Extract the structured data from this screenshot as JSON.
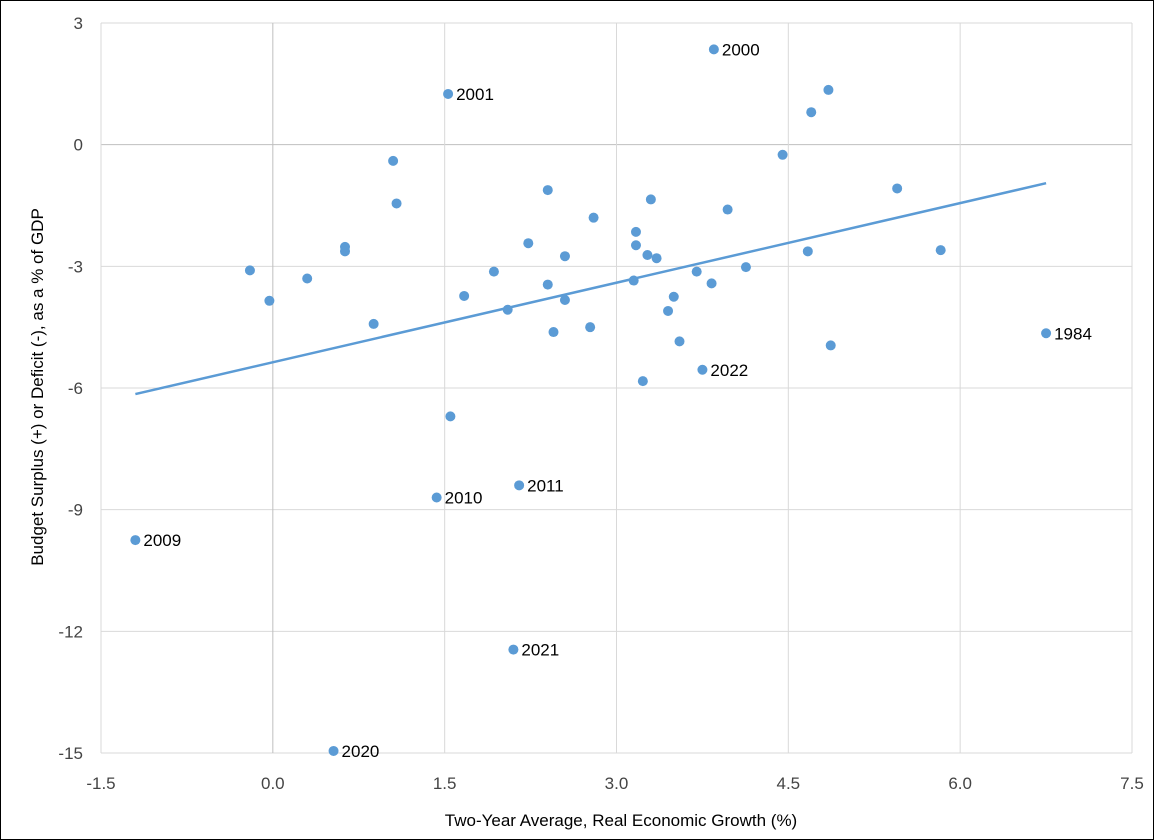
{
  "chart_data": {
    "type": "scatter",
    "title": "",
    "xlabel": "Two-Year Average, Real Economic Growth (%)",
    "ylabel": "Budget Surplus (+) or Deficit (-), as a % of GDP",
    "xlim": [
      -1.5,
      7.5
    ],
    "ylim": [
      -15,
      3
    ],
    "xticks": [
      -1.5,
      0.0,
      1.5,
      3.0,
      4.5,
      6.0,
      7.5
    ],
    "xtick_labels": [
      "-1.5",
      "0.0",
      "1.5",
      "3.0",
      "4.5",
      "6.0",
      "7.5"
    ],
    "yticks": [
      3,
      0,
      -3,
      -6,
      -9,
      -12,
      -15
    ],
    "ytick_labels": [
      "3",
      "0",
      "-3",
      "-6",
      "-9",
      "-12",
      "-15"
    ],
    "grid": true,
    "legend": "none",
    "colors": {
      "points": "#5b9bd5",
      "trendline": "#5b9bd5",
      "grid": "#d9d9d9",
      "axis_zero": "#bfbfbf"
    },
    "trendline": {
      "x": [
        -1.2,
        6.75
      ],
      "y": [
        -6.15,
        -0.95
      ]
    },
    "points": [
      {
        "x": 3.85,
        "y": 2.35,
        "label": "2000"
      },
      {
        "x": 1.53,
        "y": 1.25,
        "label": "2001"
      },
      {
        "x": 6.75,
        "y": -4.65,
        "label": "1984"
      },
      {
        "x": 3.75,
        "y": -5.55,
        "label": "2022"
      },
      {
        "x": 2.15,
        "y": -8.4,
        "label": "2011"
      },
      {
        "x": 1.43,
        "y": -8.7,
        "label": "2010"
      },
      {
        "x": -1.2,
        "y": -9.75,
        "label": "2009"
      },
      {
        "x": 2.1,
        "y": -12.45,
        "label": "2021"
      },
      {
        "x": 0.53,
        "y": -14.95,
        "label": "2020"
      },
      {
        "x": 4.85,
        "y": 1.35,
        "label": ""
      },
      {
        "x": 4.7,
        "y": 0.8,
        "label": ""
      },
      {
        "x": 4.45,
        "y": -0.25,
        "label": ""
      },
      {
        "x": 1.05,
        "y": -0.4,
        "label": ""
      },
      {
        "x": 1.08,
        "y": -1.45,
        "label": ""
      },
      {
        "x": 2.4,
        "y": -1.12,
        "label": ""
      },
      {
        "x": 5.45,
        "y": -1.08,
        "label": ""
      },
      {
        "x": 3.3,
        "y": -1.35,
        "label": ""
      },
      {
        "x": 3.97,
        "y": -1.6,
        "label": ""
      },
      {
        "x": 2.8,
        "y": -1.8,
        "label": ""
      },
      {
        "x": 3.17,
        "y": -2.15,
        "label": ""
      },
      {
        "x": 2.23,
        "y": -2.43,
        "label": ""
      },
      {
        "x": 3.17,
        "y": -2.48,
        "label": ""
      },
      {
        "x": 0.63,
        "y": -2.52,
        "label": ""
      },
      {
        "x": 0.63,
        "y": -2.63,
        "label": ""
      },
      {
        "x": 4.67,
        "y": -2.63,
        "label": ""
      },
      {
        "x": 5.83,
        "y": -2.6,
        "label": ""
      },
      {
        "x": 2.55,
        "y": -2.75,
        "label": ""
      },
      {
        "x": 3.27,
        "y": -2.72,
        "label": ""
      },
      {
        "x": 3.35,
        "y": -2.8,
        "label": ""
      },
      {
        "x": 4.13,
        "y": -3.02,
        "label": ""
      },
      {
        "x": -0.2,
        "y": -3.1,
        "label": ""
      },
      {
        "x": 1.93,
        "y": -3.13,
        "label": ""
      },
      {
        "x": 3.7,
        "y": -3.13,
        "label": ""
      },
      {
        "x": 0.3,
        "y": -3.3,
        "label": ""
      },
      {
        "x": 3.15,
        "y": -3.35,
        "label": ""
      },
      {
        "x": 3.83,
        "y": -3.42,
        "label": ""
      },
      {
        "x": 2.4,
        "y": -3.45,
        "label": ""
      },
      {
        "x": 1.67,
        "y": -3.73,
        "label": ""
      },
      {
        "x": 3.5,
        "y": -3.75,
        "label": ""
      },
      {
        "x": -0.03,
        "y": -3.85,
        "label": ""
      },
      {
        "x": 2.55,
        "y": -3.83,
        "label": ""
      },
      {
        "x": 2.05,
        "y": -4.07,
        "label": ""
      },
      {
        "x": 3.45,
        "y": -4.1,
        "label": ""
      },
      {
        "x": 0.88,
        "y": -4.42,
        "label": ""
      },
      {
        "x": 2.77,
        "y": -4.5,
        "label": ""
      },
      {
        "x": 2.45,
        "y": -4.62,
        "label": ""
      },
      {
        "x": 3.55,
        "y": -4.85,
        "label": ""
      },
      {
        "x": 4.87,
        "y": -4.95,
        "label": ""
      },
      {
        "x": 3.23,
        "y": -5.83,
        "label": ""
      },
      {
        "x": 1.55,
        "y": -6.7,
        "label": ""
      }
    ]
  }
}
